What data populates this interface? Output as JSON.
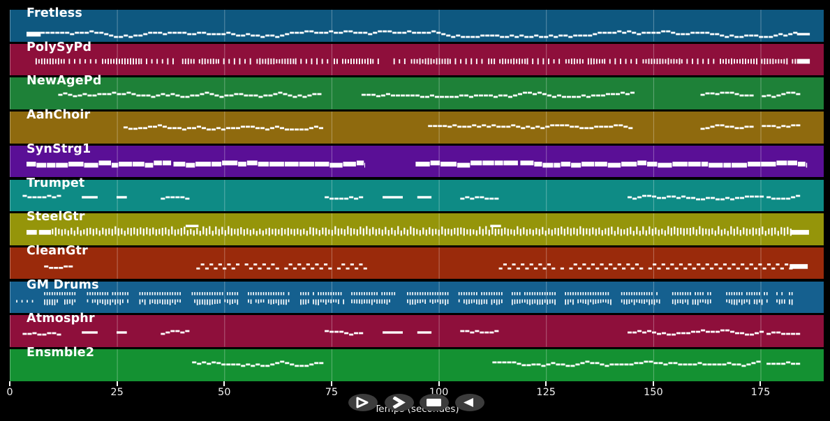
{
  "app": {
    "background": "#000000",
    "note_color": "#ffffff",
    "gridline_color": "rgba(255,255,255,0.32)"
  },
  "axis": {
    "label": "Temps (secondes)",
    "ticks": [
      0,
      25,
      50,
      75,
      100,
      125,
      150,
      175
    ]
  },
  "transport": {
    "button_color": "#3c3c3c",
    "glyph_color": "#ffffff",
    "buttons": [
      {
        "name": "play",
        "glyph": "play-outline-icon"
      },
      {
        "name": "fast-forward",
        "glyph": "fast-forward-icon"
      },
      {
        "name": "stop",
        "glyph": "stop-icon"
      },
      {
        "name": "rewind",
        "glyph": "rewind-icon"
      }
    ]
  },
  "chart_data": {
    "type": "midi-track-timeline",
    "xlabel": "Temps (secondes)",
    "x_ticks": [
      0,
      25,
      50,
      75,
      100,
      125,
      150,
      175
    ],
    "x_range": [
      0,
      189.5
    ],
    "grid": "vertical-at-ticks",
    "tracks": [
      {
        "name": "Fretless",
        "color": "#0e5880",
        "yc": 0.77,
        "segments": [
          {
            "type": "block",
            "t": [
              3.9,
              7.2
            ]
          },
          {
            "type": "wave",
            "t": [
              7.2,
              183.5
            ],
            "amp": 4
          },
          {
            "type": "flat",
            "t": [
              183.5,
              186.5
            ]
          }
        ]
      },
      {
        "name": "PolySyPd",
        "color": "#8e0f3b",
        "yc": 0.55,
        "segments": [
          {
            "type": "comb",
            "t": [
              6,
              12
            ],
            "density": "dense"
          },
          {
            "type": "comb",
            "t": [
              12.5,
              21
            ],
            "density": "sparse"
          },
          {
            "type": "comb",
            "t": [
              21.5,
              30
            ],
            "density": "dense"
          },
          {
            "type": "comb",
            "t": [
              30.5,
              39
            ],
            "density": "sparse"
          },
          {
            "type": "comb",
            "t": [
              39.5,
              48
            ],
            "density": "dense"
          },
          {
            "type": "comb",
            "t": [
              48.5,
              57
            ],
            "density": "sparse"
          },
          {
            "type": "comb",
            "t": [
              57.5,
              66
            ],
            "density": "dense"
          },
          {
            "type": "comb",
            "t": [
              66.5,
              75
            ],
            "density": "sparse"
          },
          {
            "type": "comb",
            "t": [
              75.5,
              84
            ],
            "density": "dense"
          },
          {
            "type": "comb",
            "t": [
              84.5,
              93
            ],
            "density": "sparse"
          },
          {
            "type": "comb",
            "t": [
              93.5,
              102
            ],
            "density": "dense"
          },
          {
            "type": "comb",
            "t": [
              102.5,
              111
            ],
            "density": "sparse"
          },
          {
            "type": "comb",
            "t": [
              111.5,
              120
            ],
            "density": "dense"
          },
          {
            "type": "comb",
            "t": [
              120.5,
              129
            ],
            "density": "sparse"
          },
          {
            "type": "comb",
            "t": [
              129.5,
              138
            ],
            "density": "dense"
          },
          {
            "type": "comb",
            "t": [
              138.5,
              147
            ],
            "density": "sparse"
          },
          {
            "type": "comb",
            "t": [
              147.5,
              156
            ],
            "density": "dense"
          },
          {
            "type": "comb",
            "t": [
              156.5,
              165
            ],
            "density": "sparse"
          },
          {
            "type": "comb",
            "t": [
              165.5,
              174
            ],
            "density": "dense"
          },
          {
            "type": "comb",
            "t": [
              174.5,
              183.5
            ],
            "density": "dense"
          },
          {
            "type": "block",
            "t": [
              183.5,
              186.5
            ]
          }
        ]
      },
      {
        "name": "NewAgePd",
        "color": "#1e8138",
        "yc": 0.55,
        "segments": [
          {
            "type": "wave",
            "t": [
              11.3,
              72.6
            ],
            "amp": 3
          },
          {
            "type": "wave",
            "t": [
              82,
              145
            ],
            "amp": 3
          },
          {
            "type": "wave",
            "t": [
              161,
              173.5
            ],
            "amp": 3
          },
          {
            "type": "wave",
            "t": [
              175.3,
              183.4
            ],
            "amp": 3
          }
        ]
      },
      {
        "name": "AahChoir",
        "color": "#8f6a0e",
        "yc": 0.5,
        "segments": [
          {
            "type": "wave",
            "t": [
              26.5,
              72.6
            ],
            "amp": 3
          },
          {
            "type": "wave",
            "t": [
              97.5,
              145
            ],
            "amp": 3
          },
          {
            "type": "wave",
            "t": [
              161,
              173.5
            ],
            "amp": 3
          },
          {
            "type": "wave",
            "t": [
              175.3,
              183.4
            ],
            "amp": 3
          }
        ]
      },
      {
        "name": "SynStrg1",
        "color": "#5a0f96",
        "yc": 0.58,
        "segments": [
          {
            "type": "bar",
            "t": [
              3.9,
              82.7
            ]
          },
          {
            "type": "bar",
            "t": [
              94.6,
              186
            ]
          }
        ]
      },
      {
        "name": "Trumpet",
        "color": "#0e8b85",
        "yc": 0.55,
        "segments": [
          {
            "type": "wave",
            "t": [
              3,
              11.5
            ],
            "amp": 3
          },
          {
            "type": "flat",
            "t": [
              16.8,
              20.5
            ]
          },
          {
            "type": "flat",
            "t": [
              24.9,
              27.3
            ]
          },
          {
            "type": "wave",
            "t": [
              35.2,
              41.2
            ],
            "amp": 2
          },
          {
            "type": "wave",
            "t": [
              73.4,
              82.3
            ],
            "amp": 3
          },
          {
            "type": "flat",
            "t": [
              86.9,
              91.6
            ]
          },
          {
            "type": "flat",
            "t": [
              95,
              98.3
            ]
          },
          {
            "type": "wave",
            "t": [
              105,
              113.2
            ],
            "amp": 2
          },
          {
            "type": "wave",
            "t": [
              144,
              175
            ],
            "amp": 3
          },
          {
            "type": "wave",
            "t": [
              176.4,
              183.3
            ],
            "amp": 2
          }
        ]
      },
      {
        "name": "SteelGtr",
        "color": "#95950a",
        "yc": 0.6,
        "segments": [
          {
            "type": "block",
            "t": [
              3.9,
              6.3
            ]
          },
          {
            "type": "block",
            "t": [
              6.8,
              9.6
            ]
          },
          {
            "type": "steel",
            "t": [
              9.8,
              182
            ]
          },
          {
            "type": "flat",
            "t": [
              41,
              44
            ],
            "y": 0.4
          },
          {
            "type": "flat",
            "t": [
              112,
              114.5
            ],
            "y": 0.4
          },
          {
            "type": "block",
            "t": [
              182,
              186.3
            ]
          }
        ]
      },
      {
        "name": "CleanGtr",
        "color": "#9a2a0b",
        "yc": 0.6,
        "segments": [
          {
            "type": "wave",
            "t": [
              8,
              14
            ],
            "amp": 2
          },
          {
            "type": "zigzag",
            "t": [
              43.5,
              82.5
            ]
          },
          {
            "type": "zigzag",
            "t": [
              114,
              181.8
            ]
          },
          {
            "type": "block",
            "t": [
              181.8,
              186
            ]
          }
        ]
      },
      {
        "name": "GM Drums",
        "color": "#15608f",
        "yc": 0.5,
        "segments": [
          {
            "type": "drums-sparse",
            "t": [
              1.5,
              5.5
            ]
          },
          {
            "type": "drums",
            "t": [
              8,
              15.6
            ]
          },
          {
            "type": "drums",
            "t": [
              18,
              27.8
            ]
          },
          {
            "type": "drums",
            "t": [
              30.2,
              40
            ]
          },
          {
            "type": "drums",
            "t": [
              42.4,
              53.5
            ]
          },
          {
            "type": "drums",
            "t": [
              55.5,
              65.3
            ]
          },
          {
            "type": "drums",
            "t": [
              67.7,
              77.8
            ]
          },
          {
            "type": "drums",
            "t": [
              79.6,
              90
            ]
          },
          {
            "type": "drums",
            "t": [
              92.6,
              102.4
            ]
          },
          {
            "type": "drums",
            "t": [
              104.6,
              114.6
            ]
          },
          {
            "type": "drums",
            "t": [
              117,
              127
            ]
          },
          {
            "type": "drums",
            "t": [
              129.4,
              140.2
            ]
          },
          {
            "type": "drums",
            "t": [
              142.5,
              151.8
            ]
          },
          {
            "type": "drums",
            "t": [
              154.4,
              163.7
            ]
          },
          {
            "type": "drums",
            "t": [
              167,
              176.4
            ]
          },
          {
            "type": "drums",
            "t": [
              178.7,
              182.8
            ]
          }
        ]
      },
      {
        "name": "Atmosphr",
        "color": "#8e0f3b",
        "yc": 0.55,
        "segments": [
          {
            "type": "wave",
            "t": [
              3,
              11.5
            ],
            "amp": 3
          },
          {
            "type": "flat",
            "t": [
              16.8,
              20.5
            ]
          },
          {
            "type": "flat",
            "t": [
              24.9,
              27.3
            ]
          },
          {
            "type": "wave",
            "t": [
              35.2,
              41.2
            ],
            "amp": 2
          },
          {
            "type": "wave",
            "t": [
              73.4,
              82.3
            ],
            "amp": 3
          },
          {
            "type": "flat",
            "t": [
              86.9,
              91.6
            ]
          },
          {
            "type": "flat",
            "t": [
              95,
              98.3
            ]
          },
          {
            "type": "wave",
            "t": [
              105,
              113.2
            ],
            "amp": 2
          },
          {
            "type": "wave",
            "t": [
              144,
              175
            ],
            "amp": 3
          },
          {
            "type": "wave",
            "t": [
              176.4,
              183.3
            ],
            "amp": 2
          }
        ]
      },
      {
        "name": "Ensmble2",
        "color": "#149132",
        "yc": 0.46,
        "segments": [
          {
            "type": "wave",
            "t": [
              42.5,
              72.5
            ],
            "amp": 3
          },
          {
            "type": "wave",
            "t": [
              112.5,
              175
            ],
            "amp": 3
          },
          {
            "type": "wave",
            "t": [
              176.4,
              183.3
            ],
            "amp": 2
          }
        ]
      }
    ]
  }
}
